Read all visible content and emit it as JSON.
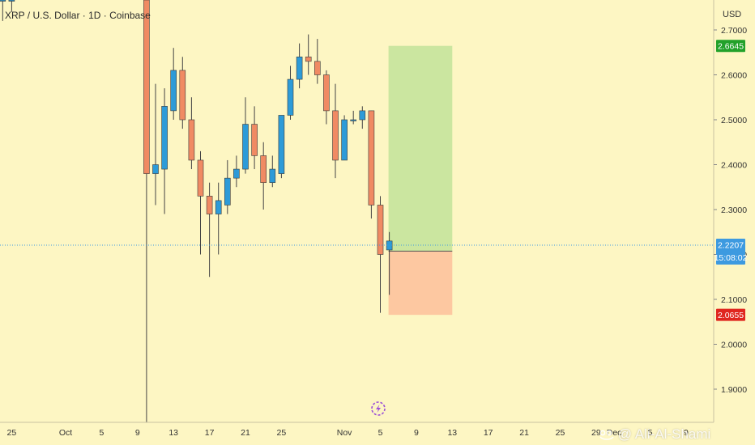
{
  "header": {
    "title": "XRP / U.S. Dollar · 1D · Coinbase"
  },
  "watermark": {
    "text": "@ Ali-Al-Shami"
  },
  "colors": {
    "background": "#fdf6c3",
    "up": "#2d9bd8",
    "down": "#f08a63",
    "wick": "#444444",
    "profit_zone": "#cbe6a0",
    "loss_zone": "#fdc8a1",
    "price_line": "#3d9ae0",
    "target_label": "#22a12a",
    "stop_label": "#e0261f",
    "entry_label": "#444444"
  },
  "chart_data": {
    "type": "candlestick",
    "title": "XRP / U.S. Dollar · 1D · Coinbase",
    "currency": "USD",
    "grid": false,
    "y_ticks": [
      "2.7000",
      "2.6000",
      "2.5000",
      "2.4000",
      "2.3000",
      "2.2000",
      "2.1000",
      "2.0000",
      "1.9000"
    ],
    "ylim": [
      1.84,
      2.77
    ],
    "x_ticks": [
      {
        "label": "25",
        "day": -6
      },
      {
        "label": "Oct",
        "day": 0
      },
      {
        "label": "5",
        "day": 4
      },
      {
        "label": "9",
        "day": 8
      },
      {
        "label": "13",
        "day": 12
      },
      {
        "label": "17",
        "day": 16
      },
      {
        "label": "21",
        "day": 20
      },
      {
        "label": "25",
        "day": 24
      },
      {
        "label": "Nov",
        "day": 31
      },
      {
        "label": "5",
        "day": 35
      },
      {
        "label": "9",
        "day": 39
      },
      {
        "label": "13",
        "day": 43
      },
      {
        "label": "17",
        "day": 47
      },
      {
        "label": "21",
        "day": 51
      },
      {
        "label": "25",
        "day": 55
      },
      {
        "label": "29",
        "day": 59
      },
      {
        "label": "Dec",
        "day": 61
      },
      {
        "label": "5",
        "day": 65
      },
      {
        "label": "9",
        "day": 69
      }
    ],
    "candles": [
      {
        "day": -7,
        "open": 2.8,
        "high": 2.85,
        "low": 2.72,
        "close": 2.82
      },
      {
        "day": -6,
        "open": 2.82,
        "high": 2.86,
        "low": 2.74,
        "close": 2.84
      },
      {
        "day": 9,
        "open": 2.95,
        "high": 2.98,
        "low": 1.6,
        "close": 2.38
      },
      {
        "day": 10,
        "open": 2.38,
        "high": 2.58,
        "low": 2.31,
        "close": 2.4
      },
      {
        "day": 11,
        "open": 2.39,
        "high": 2.57,
        "low": 2.29,
        "close": 2.53
      },
      {
        "day": 12,
        "open": 2.52,
        "high": 2.66,
        "low": 2.5,
        "close": 2.61
      },
      {
        "day": 13,
        "open": 2.61,
        "high": 2.64,
        "low": 2.48,
        "close": 2.5
      },
      {
        "day": 14,
        "open": 2.5,
        "high": 2.55,
        "low": 2.39,
        "close": 2.41
      },
      {
        "day": 15,
        "open": 2.41,
        "high": 2.43,
        "low": 2.2,
        "close": 2.33
      },
      {
        "day": 16,
        "open": 2.33,
        "high": 2.36,
        "low": 2.15,
        "close": 2.29
      },
      {
        "day": 17,
        "open": 2.29,
        "high": 2.36,
        "low": 2.2,
        "close": 2.32
      },
      {
        "day": 18,
        "open": 2.31,
        "high": 2.41,
        "low": 2.29,
        "close": 2.37
      },
      {
        "day": 19,
        "open": 2.37,
        "high": 2.42,
        "low": 2.35,
        "close": 2.39
      },
      {
        "day": 20,
        "open": 2.39,
        "high": 2.55,
        "low": 2.38,
        "close": 2.49
      },
      {
        "day": 21,
        "open": 2.49,
        "high": 2.53,
        "low": 2.39,
        "close": 2.42
      },
      {
        "day": 22,
        "open": 2.42,
        "high": 2.45,
        "low": 2.3,
        "close": 2.36
      },
      {
        "day": 23,
        "open": 2.36,
        "high": 2.42,
        "low": 2.35,
        "close": 2.39
      },
      {
        "day": 24,
        "open": 2.38,
        "high": 2.51,
        "low": 2.37,
        "close": 2.51
      },
      {
        "day": 25,
        "open": 2.51,
        "high": 2.62,
        "low": 2.5,
        "close": 2.59
      },
      {
        "day": 26,
        "open": 2.59,
        "high": 2.67,
        "low": 2.57,
        "close": 2.64
      },
      {
        "day": 27,
        "open": 2.64,
        "high": 2.69,
        "low": 2.6,
        "close": 2.63
      },
      {
        "day": 28,
        "open": 2.63,
        "high": 2.68,
        "low": 2.58,
        "close": 2.6
      },
      {
        "day": 29,
        "open": 2.6,
        "high": 2.61,
        "low": 2.49,
        "close": 2.52
      },
      {
        "day": 30,
        "open": 2.52,
        "high": 2.58,
        "low": 2.37,
        "close": 2.41
      },
      {
        "day": 31,
        "open": 2.41,
        "high": 2.51,
        "low": 2.41,
        "close": 2.5
      },
      {
        "day": 32,
        "open": 2.5,
        "high": 2.52,
        "low": 2.49,
        "close": 2.5
      },
      {
        "day": 33,
        "open": 2.5,
        "high": 2.53,
        "low": 2.48,
        "close": 2.52
      },
      {
        "day": 34,
        "open": 2.52,
        "high": 2.52,
        "low": 2.28,
        "close": 2.31
      },
      {
        "day": 35,
        "open": 2.31,
        "high": 2.33,
        "low": 2.07,
        "close": 2.2
      },
      {
        "day": 36,
        "open": 2.21,
        "high": 2.25,
        "low": 2.11,
        "close": 2.23
      }
    ],
    "position": {
      "type": "long",
      "start_day": 36,
      "end_day": 43,
      "target": 2.6645,
      "entry": 2.2074,
      "stop": 2.0655
    },
    "current_price": 2.2207,
    "countdown": "15:08:02",
    "price_labels": {
      "target": "2.6645",
      "current": "2.2207",
      "entry": "2.2074",
      "stop": "2.0655"
    }
  }
}
